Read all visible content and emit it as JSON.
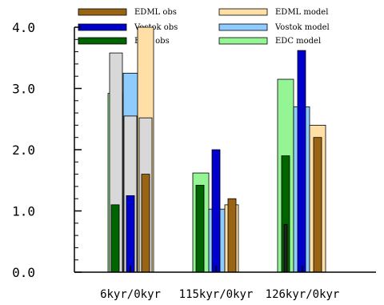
{
  "chart_data": {
    "type": "bar",
    "categories": [
      "6kyr/0kyr",
      "115kyr/0kyr",
      "126kyr/0kyr"
    ],
    "ylim": [
      0,
      4.0
    ],
    "yticks": [
      "0.0",
      "1.0",
      "2.0",
      "3.0",
      "4.0"
    ],
    "ytick_values": [
      0,
      1,
      2,
      3,
      4
    ],
    "grid": false,
    "legend_position": "top",
    "series": [
      {
        "name": "EDML obs",
        "role": "obs",
        "site": "EDML",
        "color": "#996515",
        "values": [
          1.6,
          1.2,
          2.2
        ]
      },
      {
        "name": "EDML model",
        "role": "model",
        "site": "EDML",
        "color": "#ffdfa5",
        "values": [
          4.0,
          1.1,
          2.4
        ]
      },
      {
        "name": "Vostok obs",
        "role": "obs",
        "site": "Vostok",
        "color": "#0000cc",
        "values": [
          1.25,
          2.0,
          3.62
        ]
      },
      {
        "name": "Vostok model",
        "role": "model",
        "site": "Vostok",
        "color": "#8ecbff",
        "values": [
          3.25,
          1.03,
          2.7
        ]
      },
      {
        "name": "EDC obs",
        "role": "obs",
        "site": "EDC",
        "color": "#006400",
        "values": [
          1.1,
          1.42,
          1.9
        ]
      },
      {
        "name": "EDC model",
        "role": "model",
        "site": "EDC",
        "color": "#95f595",
        "values": [
          2.92,
          1.62,
          3.15
        ]
      }
    ],
    "unlabeled_bars": [
      {
        "color": "#d8d8d8",
        "values": [
          3.58,
          null,
          null
        ]
      },
      {
        "color": "#d8d8d8",
        "values": [
          2.55,
          null,
          null
        ]
      },
      {
        "color": "#d8d8d8",
        "values": [
          2.52,
          null,
          null
        ]
      },
      {
        "color": "#222222",
        "values": [
          null,
          1.05,
          0.78
        ]
      }
    ]
  }
}
